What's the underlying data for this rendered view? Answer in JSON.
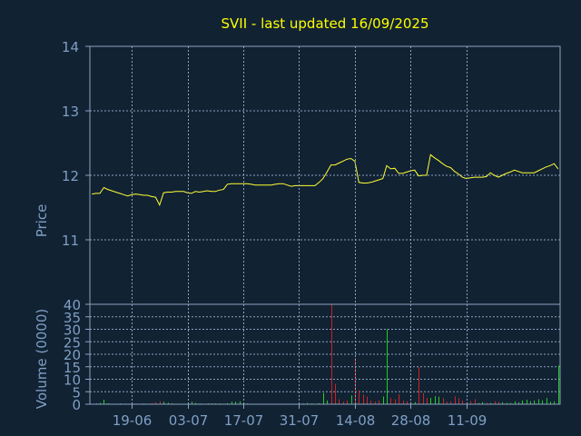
{
  "chart_data": {
    "title": "SVII - last updated 16/09/2025",
    "colors": {
      "background": "#112233",
      "frame": "#8ba2bf",
      "grid": "#8ba2bf",
      "price_line": "#ffff33",
      "title": "#ffff00",
      "axis_text": "#7f9fc4",
      "volume_up": "#22cc22",
      "volume_down": "#cc2222"
    },
    "price_panel": {
      "type": "line",
      "ylabel": "Price",
      "ylim": [
        10,
        14
      ],
      "yticks": [
        11,
        12,
        13,
        14
      ],
      "grid": true,
      "series": [
        {
          "values": [
            11.71,
            11.72,
            11.72,
            11.81,
            11.78,
            11.76,
            11.74,
            11.72,
            11.7,
            11.68,
            11.7,
            11.71,
            11.7,
            11.69,
            11.69,
            11.67,
            11.66,
            11.54,
            11.73,
            11.74,
            11.74,
            11.75,
            11.75,
            11.75,
            11.73,
            11.72,
            11.75,
            11.74,
            11.75,
            11.76,
            11.75,
            11.75,
            11.77,
            11.78,
            11.86,
            11.87,
            11.87,
            11.87,
            11.87,
            11.87,
            11.86,
            11.85,
            11.85,
            11.85,
            11.85,
            11.85,
            11.86,
            11.87,
            11.87,
            11.85,
            11.83,
            11.84,
            11.84,
            11.84,
            11.84,
            11.84,
            11.84,
            11.89,
            11.95,
            12.05,
            12.16,
            12.16,
            12.19,
            12.22,
            12.25,
            12.26,
            12.22,
            11.89,
            11.88,
            11.88,
            11.89,
            11.91,
            11.93,
            11.95,
            12.15,
            12.1,
            12.11,
            12.03,
            12.03,
            12.05,
            12.07,
            12.08,
            11.99,
            12.0,
            12.0,
            12.32,
            12.27,
            12.23,
            12.18,
            12.14,
            12.12,
            12.06,
            12.02,
            11.97,
            11.95,
            11.96,
            11.97,
            11.97,
            11.97,
            11.98,
            12.04,
            12.0,
            11.97,
            12.0,
            12.03,
            12.05,
            12.08,
            12.06,
            12.04,
            12.04,
            12.04,
            12.04,
            12.07,
            12.1,
            12.13,
            12.15,
            12.18,
            12.1
          ]
        }
      ]
    },
    "volume_panel": {
      "type": "bar",
      "ylabel": "Volume (0000)",
      "ylim": [
        0,
        40
      ],
      "yticks": [
        0,
        5,
        10,
        15,
        20,
        25,
        30,
        35,
        40
      ],
      "grid": true,
      "values": [
        0.2,
        0.3,
        0.5,
        1.8,
        0.4,
        0.2,
        0.2,
        0.3,
        0.2,
        0.2,
        0.3,
        0.2,
        0.2,
        0.3,
        0.2,
        0.5,
        0.8,
        1.2,
        1.0,
        0.6,
        0.3,
        0.2,
        0.2,
        0.2,
        0.4,
        1.0,
        0.5,
        0.3,
        0.2,
        0.3,
        0.3,
        0.3,
        0.3,
        0.2,
        0.4,
        1.0,
        1.0,
        1.2,
        0.3,
        0.3,
        0.2,
        0.2,
        0.2,
        0.2,
        0.2,
        0.2,
        0.2,
        0.2,
        0.2,
        0.2,
        0.2,
        0.2,
        0.2,
        0.3,
        0.5,
        0.3,
        0.2,
        0.4,
        4.5,
        1.5,
        40,
        8.2,
        2.0,
        1.0,
        1.5,
        3.5,
        18.5,
        5.6,
        3.8,
        3.1,
        1.5,
        1.0,
        1.5,
        3.1,
        30,
        2.5,
        2.0,
        4.0,
        1.5,
        1.2,
        1.0,
        0.8,
        14.8,
        4.5,
        2.5,
        2.5,
        3.2,
        3.0,
        2.5,
        1.0,
        1.2,
        3.2,
        2.5,
        1.5,
        0.8,
        1.2,
        2.0,
        0.5,
        0.8,
        0.5,
        0.5,
        1.2,
        1.0,
        0.8,
        0.5,
        0.5,
        1.2,
        0.8,
        1.5,
        1.8,
        1.2,
        1.5,
        2.0,
        1.5,
        2.5,
        1.0,
        1.2,
        15.5
      ],
      "direction": [
        "u",
        "u",
        "u",
        "u",
        "u",
        "u",
        "u",
        "u",
        "u",
        "u",
        "u",
        "u",
        "u",
        "u",
        "u",
        "d",
        "d",
        "d",
        "u",
        "u",
        "u",
        "u",
        "u",
        "u",
        "d",
        "u",
        "u",
        "u",
        "u",
        "u",
        "u",
        "u",
        "u",
        "u",
        "u",
        "u",
        "u",
        "u",
        "u",
        "u",
        "u",
        "u",
        "u",
        "u",
        "u",
        "u",
        "u",
        "u",
        "u",
        "d",
        "d",
        "u",
        "u",
        "u",
        "u",
        "u",
        "u",
        "u",
        "u",
        "u",
        "d",
        "d",
        "d",
        "d",
        "d",
        "u",
        "d",
        "d",
        "d",
        "d",
        "d",
        "d",
        "d",
        "u",
        "u",
        "d",
        "d",
        "d",
        "d",
        "d",
        "d",
        "u",
        "d",
        "d",
        "d",
        "u",
        "u",
        "u",
        "d",
        "d",
        "d",
        "d",
        "d",
        "d",
        "d",
        "d",
        "d",
        "u",
        "u",
        "d",
        "u",
        "d",
        "d",
        "u",
        "u",
        "u",
        "u",
        "u",
        "u",
        "u",
        "u",
        "u",
        "u",
        "u",
        "u",
        "u",
        "u",
        "u",
        "d",
        "u"
      ]
    },
    "x_axis": {
      "tick_labels": [
        "19-06",
        "03-07",
        "17-07",
        "31-07",
        "14-08",
        "28-08",
        "11-09"
      ],
      "tick_positions": [
        10,
        24,
        38,
        52,
        66,
        80,
        94
      ]
    }
  }
}
